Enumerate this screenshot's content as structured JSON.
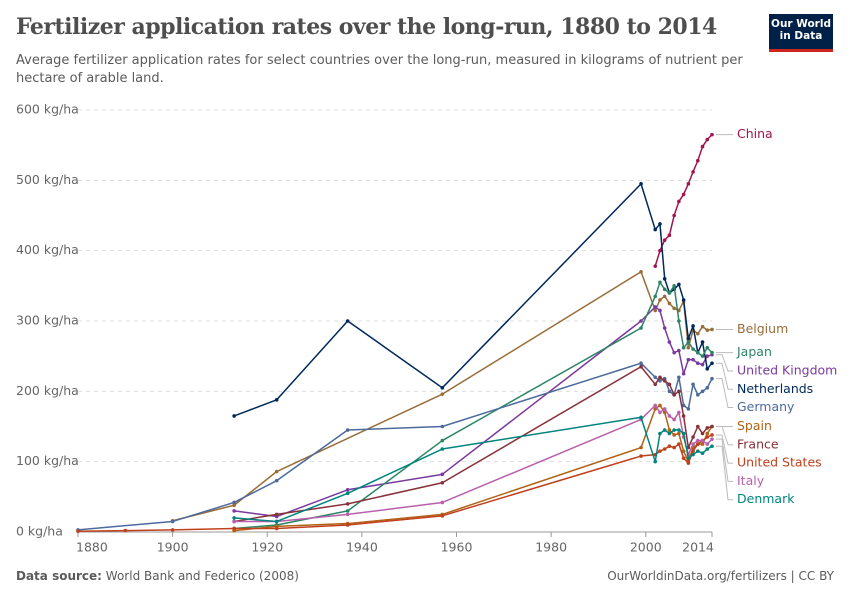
{
  "chart_data": {
    "type": "line",
    "title": "Fertilizer application rates over the long-run, 1880 to 2014",
    "subtitle": "Average fertilizer application rates for select countries over the long-run, measured in kilograms of nutrient per hectare of arable land.",
    "logo": [
      "Our World",
      "in Data"
    ],
    "source_label": "Data source:",
    "source": "World Bank and Federico (2008)",
    "credit": "OurWorldinData.org/fertilizers | CC BY",
    "xlim": [
      1880,
      2014
    ],
    "xticks": [
      1880,
      1900,
      1920,
      1940,
      1960,
      1980,
      2000,
      2014
    ],
    "ylim": [
      0,
      600
    ],
    "yticks": [
      {
        "value": 0,
        "label": "0 kg/ha"
      },
      {
        "value": 100,
        "label": "100 kg/ha"
      },
      {
        "value": 200,
        "label": "200 kg/ha"
      },
      {
        "value": 300,
        "label": "300 kg/ha"
      },
      {
        "value": 400,
        "label": "400 kg/ha"
      },
      {
        "value": 500,
        "label": "500 kg/ha"
      },
      {
        "value": 600,
        "label": "600 kg/ha"
      }
    ],
    "grid": true,
    "series": [
      {
        "name": "China",
        "color": "#a2134f",
        "x": [
          2002,
          2003,
          2004,
          2005,
          2006,
          2007,
          2008,
          2009,
          2010,
          2011,
          2012,
          2013,
          2014
        ],
        "values": [
          378,
          400,
          415,
          422,
          450,
          470,
          480,
          495,
          512,
          528,
          548,
          558,
          565
        ]
      },
      {
        "name": "Belgium",
        "color": "#996d39",
        "x": [
          1900,
          1913,
          1922,
          1957,
          1999,
          2002,
          2003,
          2004,
          2005,
          2006,
          2007,
          2008,
          2009,
          2010,
          2011,
          2012,
          2013,
          2014
        ],
        "values": [
          16,
          38,
          86,
          196,
          370,
          315,
          330,
          335,
          325,
          318,
          315,
          328,
          262,
          287,
          282,
          292,
          287,
          288
        ]
      },
      {
        "name": "United Kingdom",
        "color": "#7b3a9e",
        "x": [
          1913,
          1922,
          1937,
          1957,
          1999,
          2002,
          2003,
          2004,
          2005,
          2006,
          2007,
          2008,
          2009,
          2010,
          2011,
          2012,
          2013,
          2014
        ],
        "values": [
          30,
          22,
          60,
          82,
          300,
          320,
          315,
          290,
          270,
          255,
          258,
          225,
          245,
          245,
          240,
          238,
          250,
          252
        ]
      },
      {
        "name": "Netherlands",
        "color": "#00295b",
        "x": [
          1913,
          1922,
          1937,
          1957,
          1999,
          2002,
          2003,
          2004,
          2005,
          2006,
          2007,
          2008,
          2009,
          2010,
          2011,
          2012,
          2013,
          2014
        ],
        "values": [
          165,
          188,
          300,
          205,
          495,
          430,
          438,
          360,
          340,
          345,
          352,
          330,
          275,
          293,
          255,
          270,
          232,
          240
        ]
      },
      {
        "name": "Japan",
        "color": "#2c8465",
        "x": [
          1913,
          1922,
          1937,
          1957,
          1999,
          2002,
          2003,
          2004,
          2005,
          2006,
          2007,
          2008,
          2009,
          2010,
          2011,
          2012,
          2013,
          2014
        ],
        "values": [
          5,
          10,
          30,
          130,
          290,
          335,
          355,
          345,
          340,
          350,
          300,
          262,
          270,
          260,
          255,
          250,
          262,
          255
        ]
      },
      {
        "name": "Germany",
        "color": "#4c6a9c",
        "x": [
          1880,
          1900,
          1913,
          1922,
          1937,
          1957,
          1999,
          2002,
          2003,
          2004,
          2005,
          2006,
          2007,
          2008,
          2009,
          2010,
          2011,
          2012,
          2013,
          2014
        ],
        "values": [
          3,
          15,
          42,
          73,
          145,
          150,
          240,
          220,
          215,
          218,
          200,
          195,
          220,
          180,
          175,
          210,
          195,
          200,
          205,
          218
        ]
      },
      {
        "name": "Spain",
        "color": "#b16214",
        "x": [
          1913,
          1922,
          1937,
          1957,
          1999,
          2002,
          2003,
          2004,
          2005,
          2006,
          2007,
          2008,
          2009,
          2010,
          2011,
          2012,
          2013,
          2014
        ],
        "values": [
          2,
          8,
          12,
          25,
          120,
          175,
          180,
          170,
          145,
          138,
          140,
          115,
          100,
          120,
          125,
          125,
          140,
          150
        ]
      },
      {
        "name": "France",
        "color": "#883039",
        "x": [
          1913,
          1922,
          1937,
          1957,
          1999,
          2002,
          2003,
          2004,
          2005,
          2006,
          2007,
          2008,
          2009,
          2010,
          2011,
          2012,
          2013,
          2014
        ],
        "values": [
          15,
          25,
          40,
          70,
          235,
          210,
          220,
          215,
          210,
          195,
          200,
          165,
          120,
          135,
          150,
          140,
          148,
          150
        ]
      },
      {
        "name": "United States",
        "color": "#c0401d",
        "x": [
          1880,
          1890,
          1900,
          1913,
          1922,
          1937,
          1957,
          1999,
          2002,
          2003,
          2004,
          2005,
          2006,
          2007,
          2008,
          2009,
          2010,
          2011,
          2012,
          2013,
          2014
        ],
        "values": [
          1,
          2,
          3,
          5,
          5,
          10,
          23,
          108,
          110,
          115,
          118,
          122,
          120,
          125,
          105,
          98,
          115,
          125,
          130,
          135,
          138
        ]
      },
      {
        "name": "Italy",
        "color": "#b95fac",
        "x": [
          1913,
          1922,
          1937,
          1957,
          1999,
          2002,
          2003,
          2004,
          2005,
          2006,
          2007,
          2008,
          2009,
          2010,
          2011,
          2012,
          2013,
          2014
        ],
        "values": [
          15,
          15,
          25,
          42,
          160,
          180,
          170,
          175,
          165,
          160,
          170,
          135,
          110,
          125,
          130,
          130,
          125,
          132
        ]
      },
      {
        "name": "Denmark",
        "color": "#00847e",
        "x": [
          1913,
          1922,
          1937,
          1957,
          1999,
          2002,
          2003,
          2004,
          2005,
          2006,
          2007,
          2008,
          2009,
          2010,
          2011,
          2012,
          2013,
          2014
        ],
        "values": [
          20,
          15,
          55,
          118,
          163,
          100,
          140,
          145,
          140,
          145,
          145,
          140,
          105,
          110,
          115,
          112,
          118,
          122
        ]
      }
    ]
  }
}
